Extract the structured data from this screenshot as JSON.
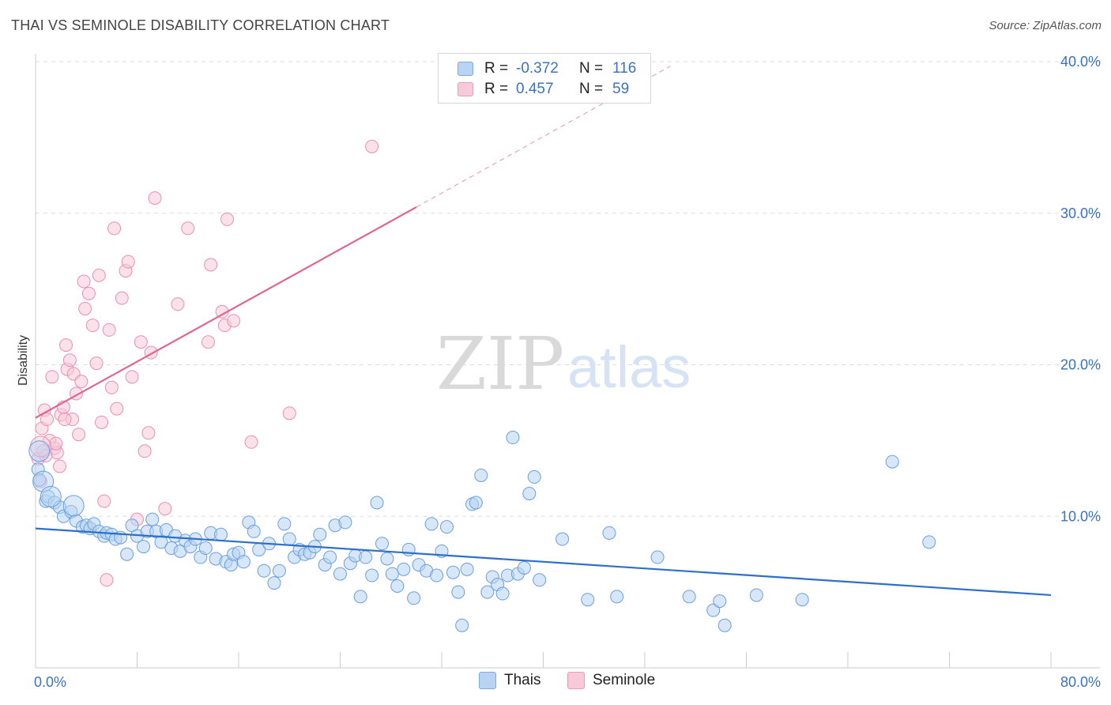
{
  "title": "THAI VS SEMINOLE DISABILITY CORRELATION CHART",
  "source": "Source: ZipAtlas.com",
  "watermark": {
    "zip": "ZIP",
    "atlas": "atlas"
  },
  "legend": {
    "rows": [
      {
        "r_label": "R =",
        "r_value": "-0.372",
        "n_label": "N =",
        "n_value": "116"
      },
      {
        "r_label": "R =",
        "r_value": "0.457",
        "n_label": "N =",
        "n_value": "59"
      }
    ]
  },
  "bottom_legend": {
    "series1": "Thais",
    "series2": "Seminole"
  },
  "colors": {
    "blue_fill": "#b8d3f3",
    "blue_stroke": "#6a9fdd",
    "blue_line": "#2d6fcd",
    "pink_fill": "#f8c9d8",
    "pink_stroke": "#ea8fae",
    "pink_line": "#e0668f",
    "tick_text": "#3a72c4",
    "grid": "#dddddd"
  },
  "chart_data": {
    "type": "scatter",
    "title": "THAI VS SEMINOLE DISABILITY CORRELATION CHART",
    "xlabel": "",
    "ylabel": "Disability",
    "xlim": [
      0,
      80
    ],
    "ylim": [
      0,
      40
    ],
    "x_tick_labels": [
      "0.0%",
      "80.0%"
    ],
    "y_ticks": [
      10,
      20,
      30,
      40
    ],
    "y_tick_labels": [
      "10.0%",
      "20.0%",
      "30.0%",
      "40.0%"
    ],
    "grid": true,
    "legend_placement": "bottom",
    "series": [
      {
        "name": "Thais",
        "r": -0.372,
        "n": 116,
        "trend": {
          "x": [
            0,
            80
          ],
          "y": [
            9.2,
            4.8
          ]
        },
        "points": [
          [
            0.2,
            13.1
          ],
          [
            0.3,
            12.4
          ],
          [
            0.8,
            11.0
          ],
          [
            1.0,
            11.3
          ],
          [
            1.5,
            10.9
          ],
          [
            1.9,
            10.6
          ],
          [
            2.2,
            10.0
          ],
          [
            2.8,
            10.3
          ],
          [
            3.2,
            9.7
          ],
          [
            3.7,
            9.3
          ],
          [
            4.0,
            9.4
          ],
          [
            4.3,
            9.2
          ],
          [
            4.6,
            9.5
          ],
          [
            5.0,
            9.0
          ],
          [
            5.4,
            8.7
          ],
          [
            5.6,
            8.9
          ],
          [
            6.0,
            8.8
          ],
          [
            6.3,
            8.5
          ],
          [
            6.7,
            8.6
          ],
          [
            7.2,
            7.5
          ],
          [
            7.6,
            9.4
          ],
          [
            8.0,
            8.7
          ],
          [
            8.5,
            8.0
          ],
          [
            8.8,
            9.0
          ],
          [
            9.2,
            9.8
          ],
          [
            9.5,
            9.0
          ],
          [
            9.9,
            8.3
          ],
          [
            10.3,
            9.1
          ],
          [
            10.7,
            7.9
          ],
          [
            11.0,
            8.7
          ],
          [
            11.4,
            7.7
          ],
          [
            11.8,
            8.4
          ],
          [
            12.2,
            8.0
          ],
          [
            12.6,
            8.5
          ],
          [
            13.0,
            7.3
          ],
          [
            13.4,
            7.9
          ],
          [
            13.8,
            8.9
          ],
          [
            14.2,
            7.2
          ],
          [
            14.6,
            8.8
          ],
          [
            15.0,
            7.0
          ],
          [
            15.4,
            6.8
          ],
          [
            15.6,
            7.5
          ],
          [
            16.0,
            7.6
          ],
          [
            16.4,
            7.0
          ],
          [
            16.8,
            9.6
          ],
          [
            17.2,
            9.0
          ],
          [
            17.6,
            7.8
          ],
          [
            18.0,
            6.4
          ],
          [
            18.4,
            8.2
          ],
          [
            18.8,
            5.6
          ],
          [
            19.2,
            6.4
          ],
          [
            19.6,
            9.5
          ],
          [
            20.0,
            8.5
          ],
          [
            20.4,
            7.3
          ],
          [
            20.8,
            7.8
          ],
          [
            21.2,
            7.5
          ],
          [
            21.6,
            7.6
          ],
          [
            22.0,
            8.0
          ],
          [
            22.4,
            8.8
          ],
          [
            22.8,
            6.8
          ],
          [
            23.2,
            7.3
          ],
          [
            23.6,
            9.4
          ],
          [
            24.0,
            6.2
          ],
          [
            24.4,
            9.6
          ],
          [
            24.8,
            6.9
          ],
          [
            25.2,
            7.4
          ],
          [
            25.6,
            4.7
          ],
          [
            26.0,
            7.3
          ],
          [
            26.5,
            6.1
          ],
          [
            26.9,
            10.9
          ],
          [
            27.3,
            8.2
          ],
          [
            27.7,
            7.2
          ],
          [
            28.1,
            6.2
          ],
          [
            28.5,
            5.4
          ],
          [
            29.0,
            6.5
          ],
          [
            29.4,
            7.8
          ],
          [
            29.8,
            4.6
          ],
          [
            30.2,
            6.8
          ],
          [
            30.8,
            6.4
          ],
          [
            31.2,
            9.5
          ],
          [
            31.6,
            6.1
          ],
          [
            32.0,
            7.7
          ],
          [
            32.4,
            9.3
          ],
          [
            32.9,
            6.3
          ],
          [
            33.3,
            5.0
          ],
          [
            33.6,
            2.8
          ],
          [
            34.0,
            6.5
          ],
          [
            34.4,
            10.8
          ],
          [
            34.7,
            10.9
          ],
          [
            35.1,
            12.7
          ],
          [
            35.6,
            5.0
          ],
          [
            36.0,
            6.0
          ],
          [
            36.4,
            5.5
          ],
          [
            36.8,
            4.9
          ],
          [
            37.2,
            6.1
          ],
          [
            37.6,
            15.2
          ],
          [
            38.0,
            6.2
          ],
          [
            38.5,
            6.6
          ],
          [
            38.9,
            11.5
          ],
          [
            39.3,
            12.6
          ],
          [
            39.7,
            5.8
          ],
          [
            41.5,
            8.5
          ],
          [
            43.5,
            4.5
          ],
          [
            45.2,
            8.9
          ],
          [
            45.8,
            4.7
          ],
          [
            49.0,
            7.3
          ],
          [
            51.5,
            4.7
          ],
          [
            53.4,
            3.8
          ],
          [
            53.9,
            4.4
          ],
          [
            54.3,
            2.8
          ],
          [
            56.8,
            4.8
          ],
          [
            60.4,
            4.5
          ],
          [
            67.5,
            13.6
          ],
          [
            70.4,
            8.3
          ]
        ],
        "large_points": [
          [
            0.3,
            14.3
          ],
          [
            0.6,
            12.3
          ],
          [
            1.2,
            11.3
          ],
          [
            3.0,
            10.7
          ]
        ]
      },
      {
        "name": "Seminole",
        "r": 0.457,
        "n": 59,
        "trend": {
          "x": [
            0,
            30
          ],
          "y": [
            16.5,
            30.4
          ]
        },
        "trend_extension": {
          "x": [
            30,
            50
          ],
          "y": [
            30.4,
            39.7
          ]
        },
        "points": [
          [
            0.2,
            13.8
          ],
          [
            0.4,
            12.3
          ],
          [
            0.5,
            15.8
          ],
          [
            0.7,
            17.0
          ],
          [
            0.9,
            16.4
          ],
          [
            1.1,
            15.0
          ],
          [
            1.3,
            19.2
          ],
          [
            1.5,
            14.5
          ],
          [
            1.7,
            14.2
          ],
          [
            1.9,
            13.3
          ],
          [
            2.0,
            16.7
          ],
          [
            2.2,
            17.2
          ],
          [
            2.4,
            21.3
          ],
          [
            2.5,
            19.7
          ],
          [
            2.7,
            20.3
          ],
          [
            2.9,
            16.4
          ],
          [
            3.0,
            19.4
          ],
          [
            3.2,
            18.1
          ],
          [
            3.4,
            15.4
          ],
          [
            3.6,
            18.9
          ],
          [
            3.8,
            25.5
          ],
          [
            3.9,
            23.7
          ],
          [
            4.2,
            24.7
          ],
          [
            4.5,
            22.6
          ],
          [
            4.8,
            20.1
          ],
          [
            5.0,
            25.9
          ],
          [
            5.2,
            16.2
          ],
          [
            5.4,
            11.0
          ],
          [
            5.6,
            5.8
          ],
          [
            5.8,
            22.3
          ],
          [
            6.0,
            18.5
          ],
          [
            6.2,
            29.0
          ],
          [
            6.4,
            17.1
          ],
          [
            6.8,
            24.4
          ],
          [
            7.1,
            26.2
          ],
          [
            7.3,
            26.8
          ],
          [
            7.6,
            19.2
          ],
          [
            8.3,
            21.5
          ],
          [
            8.6,
            14.3
          ],
          [
            8.9,
            15.5
          ],
          [
            9.1,
            20.8
          ],
          [
            9.4,
            31.0
          ],
          [
            10.2,
            10.5
          ],
          [
            11.2,
            24.0
          ],
          [
            12.0,
            29.0
          ],
          [
            13.6,
            21.5
          ],
          [
            13.8,
            26.6
          ],
          [
            14.7,
            23.5
          ],
          [
            14.9,
            22.6
          ],
          [
            15.1,
            29.6
          ],
          [
            15.6,
            22.9
          ],
          [
            17.0,
            14.9
          ],
          [
            20.0,
            16.8
          ],
          [
            26.5,
            34.4
          ],
          [
            8.0,
            9.8
          ],
          [
            0.6,
            14.3
          ],
          [
            0.8,
            14.0
          ],
          [
            1.6,
            14.8
          ],
          [
            2.3,
            16.4
          ]
        ],
        "large_points": [
          [
            0.4,
            14.6
          ]
        ]
      }
    ]
  }
}
